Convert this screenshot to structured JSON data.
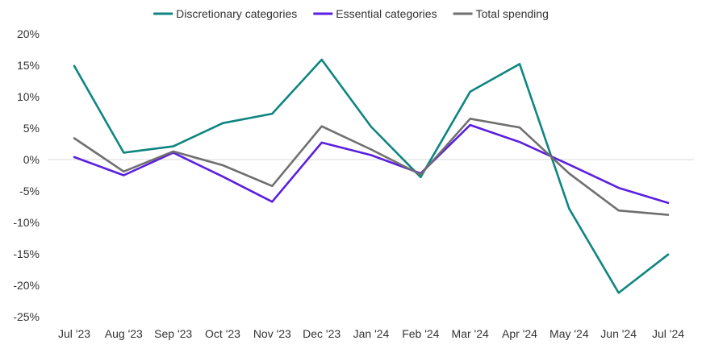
{
  "chart_data": {
    "type": "line",
    "title": "",
    "xlabel": "",
    "ylabel": "",
    "categories": [
      "Jul '23",
      "Aug '23",
      "Sep '23",
      "Oct '23",
      "Nov '23",
      "Dec '23",
      "Jan '24",
      "Feb '24",
      "Mar '24",
      "Apr '24",
      "May '24",
      "Jun '24",
      "Jul '24"
    ],
    "y_ticks": [
      20,
      15,
      10,
      5,
      0,
      -5,
      -10,
      -15,
      -20,
      -25
    ],
    "y_tick_labels": [
      "20%",
      "15%",
      "10%",
      "5%",
      "0%",
      "-5%",
      "-10%",
      "-15%",
      "-20%",
      "-25%"
    ],
    "ylim": [
      -25,
      20
    ],
    "grid": false,
    "zero_line": true,
    "legend_position": "top-center",
    "series": [
      {
        "name": "Discretionary categories",
        "color": "#0f8580",
        "values": [
          14.9,
          1.1,
          2.1,
          5.8,
          7.3,
          15.9,
          5.2,
          -2.8,
          10.8,
          15.2,
          -7.8,
          -21.2,
          -15.1
        ]
      },
      {
        "name": "Essential categories",
        "color": "#5a1fe0",
        "values": [
          0.4,
          -2.5,
          1.1,
          -2.7,
          -6.7,
          2.7,
          0.7,
          -2.2,
          5.5,
          2.8,
          -0.8,
          -4.5,
          -6.9
        ]
      },
      {
        "name": "Total spending",
        "color": "#6f6f6f",
        "values": [
          3.4,
          -1.9,
          1.3,
          -0.9,
          -4.2,
          5.3,
          1.6,
          -2.4,
          6.5,
          5.1,
          -2.2,
          -8.1,
          -8.8
        ]
      }
    ]
  }
}
